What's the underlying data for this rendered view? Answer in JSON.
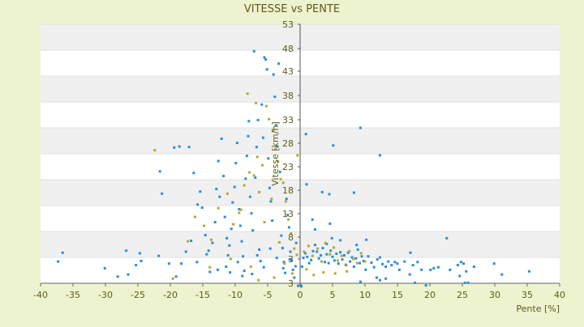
{
  "chart_data": {
    "type": "scatter",
    "title": "VITESSE vs PENTE",
    "xlabel": "Pente [%]",
    "ylabel": "Vitesse [km/h]",
    "xlim": [
      -40,
      40
    ],
    "ylim": [
      3,
      53
    ],
    "x_ticks": [
      "-40",
      "-35",
      "-30",
      "-25",
      "-20",
      "-15",
      "-10",
      "-5",
      "0",
      "5",
      "10",
      "15",
      "20",
      "25",
      "30",
      "35",
      "40"
    ],
    "y_ticks": [
      "3",
      "3",
      "8",
      "13",
      "18",
      "23",
      "28",
      "33",
      "38",
      "43",
      "48",
      "53"
    ],
    "grid": "horizontal alternating bands",
    "legend": "none",
    "colors": {
      "series_blue": "#2a8fd8",
      "series_olive": "#b6a832",
      "band": "#f0f0f0",
      "background": "#eef3cf"
    },
    "series": [
      {
        "color": "#2a8fd8",
        "points": [
          [
            -36.6,
            8.9
          ],
          [
            -37.3,
            7.2
          ],
          [
            -30.1,
            5.9
          ],
          [
            -28.1,
            4.3
          ],
          [
            -26.5,
            4.7
          ],
          [
            -25.3,
            6.5
          ],
          [
            -26.8,
            9.3
          ],
          [
            -24.7,
            8.8
          ],
          [
            -24.5,
            7.3
          ],
          [
            -21.8,
            8.3
          ],
          [
            -21.6,
            24.6
          ],
          [
            -21.3,
            20.3
          ],
          [
            -19.4,
            29.2
          ],
          [
            -18.6,
            29.4
          ],
          [
            -17.1,
            29.3
          ],
          [
            -16.4,
            24.3
          ],
          [
            -20.2,
            6.8
          ],
          [
            -19.1,
            4.3
          ],
          [
            -18.3,
            6.8
          ],
          [
            -17.6,
            9.1
          ],
          [
            -16.8,
            11.2
          ],
          [
            -15.8,
            18.2
          ],
          [
            -15.4,
            20.7
          ],
          [
            -15.1,
            17.6
          ],
          [
            -14.6,
            12.3
          ],
          [
            -14.4,
            8.6
          ],
          [
            -13.9,
            5.2
          ],
          [
            -13.5,
            10.8
          ],
          [
            -13.1,
            14.8
          ],
          [
            -12.9,
            21.2
          ],
          [
            -12.6,
            26.6
          ],
          [
            -12.4,
            19.7
          ],
          [
            -12.1,
            30.9
          ],
          [
            -11.8,
            23.7
          ],
          [
            -11.6,
            15.8
          ],
          [
            -11.3,
            11.7
          ],
          [
            -11.1,
            8.4
          ],
          [
            -10.8,
            5.1
          ],
          [
            -10.6,
            13.5
          ],
          [
            -10.4,
            18.6
          ],
          [
            -10.1,
            21.6
          ],
          [
            -9.9,
            26.2
          ],
          [
            -9.7,
            30.1
          ],
          [
            -9.4,
            17.3
          ],
          [
            -9.2,
            14.1
          ],
          [
            -9.0,
            11.1
          ],
          [
            -8.8,
            8.2
          ],
          [
            -8.6,
            5.4
          ],
          [
            -8.4,
            23.2
          ],
          [
            -8.2,
            27.6
          ],
          [
            -8.0,
            31.4
          ],
          [
            -7.9,
            34.3
          ],
          [
            -7.7,
            19.7
          ],
          [
            -7.5,
            16.5
          ],
          [
            -7.3,
            13.2
          ],
          [
            -7.1,
            47.8
          ],
          [
            -6.9,
            23.4
          ],
          [
            -6.7,
            29.3
          ],
          [
            -6.5,
            34.5
          ],
          [
            -6.3,
            9.5
          ],
          [
            -6.1,
            7.3
          ],
          [
            -5.9,
            37.5
          ],
          [
            -5.7,
            31.1
          ],
          [
            -5.5,
            46.6
          ],
          [
            -5.3,
            46.2
          ],
          [
            -5.1,
            44.3
          ],
          [
            -4.9,
            27.1
          ],
          [
            -4.7,
            21.4
          ],
          [
            -4.5,
            18.8
          ],
          [
            -4.3,
            15.1
          ],
          [
            -4.1,
            43.3
          ],
          [
            -3.9,
            39.0
          ],
          [
            -3.7,
            33.5
          ],
          [
            -3.5,
            29.4
          ],
          [
            -3.3,
            45.4
          ],
          [
            -3.1,
            24.5
          ],
          [
            -2.9,
            12.2
          ],
          [
            -2.7,
            9.8
          ],
          [
            -2.5,
            7.1
          ],
          [
            -2.3,
            5.0
          ],
          [
            -2.1,
            19.3
          ],
          [
            -1.9,
            16.2
          ],
          [
            -1.7,
            13.8
          ],
          [
            -1.5,
            9.1
          ],
          [
            -1.3,
            7.4
          ],
          [
            -1.1,
            5.6
          ],
          [
            -0.9,
            4.1
          ],
          [
            -0.7,
            6.3
          ],
          [
            -9.6,
            7.1
          ],
          [
            -8.9,
            4.4
          ],
          [
            -12.7,
            5.6
          ],
          [
            -15.9,
            7.1
          ],
          [
            -14.1,
            9.3
          ],
          [
            -11.4,
            6.2
          ],
          [
            -10.9,
            10.3
          ],
          [
            -7.4,
            4.8
          ],
          [
            -6.6,
            8.4
          ],
          [
            -5.6,
            6.1
          ],
          [
            -4.6,
            9.7
          ],
          [
            -3.6,
            7.9
          ],
          [
            -2.6,
            5.9
          ],
          [
            -1.6,
            7.6
          ],
          [
            -0.6,
            10.8
          ],
          [
            -0.3,
            2.5
          ],
          [
            0.1,
            2.6
          ],
          [
            0.2,
            2.4
          ],
          [
            0.3,
            6.2
          ],
          [
            0.5,
            7.9
          ],
          [
            0.8,
            8.8
          ],
          [
            1.1,
            8.1
          ],
          [
            1.4,
            6.9
          ],
          [
            1.7,
            7.5
          ],
          [
            2.0,
            9.2
          ],
          [
            2.3,
            10.4
          ],
          [
            2.6,
            9.1
          ],
          [
            2.9,
            7.8
          ],
          [
            3.2,
            8.4
          ],
          [
            3.5,
            9.8
          ],
          [
            3.8,
            7.1
          ],
          [
            4.1,
            8.6
          ],
          [
            4.4,
            6.9
          ],
          [
            4.7,
            9.3
          ],
          [
            5.0,
            8.1
          ],
          [
            5.3,
            7.4
          ],
          [
            5.6,
            8.7
          ],
          [
            5.9,
            6.8
          ],
          [
            6.2,
            9.0
          ],
          [
            6.5,
            7.6
          ],
          [
            6.8,
            8.4
          ],
          [
            7.1,
            6.5
          ],
          [
            7.4,
            8.9
          ],
          [
            7.7,
            7.2
          ],
          [
            8.0,
            8.0
          ],
          [
            8.3,
            6.2
          ],
          [
            8.6,
            7.8
          ],
          [
            8.9,
            9.5
          ],
          [
            9.2,
            6.9
          ],
          [
            9.5,
            8.2
          ],
          [
            9.8,
            7.3
          ],
          [
            10.1,
            5.6
          ],
          [
            10.5,
            8.2
          ],
          [
            11.0,
            7.0
          ],
          [
            11.4,
            6.1
          ],
          [
            11.9,
            7.6
          ],
          [
            12.3,
            8.0
          ],
          [
            12.7,
            6.7
          ],
          [
            13.2,
            6.2
          ],
          [
            13.6,
            7.2
          ],
          [
            14.1,
            6.5
          ],
          [
            14.6,
            7.1
          ],
          [
            15.0,
            6.8
          ],
          [
            15.3,
            5.6
          ],
          [
            16.1,
            7.2
          ],
          [
            17.0,
            8.9
          ],
          [
            17.4,
            6.5
          ],
          [
            18.1,
            7.1
          ],
          [
            18.7,
            5.6
          ],
          [
            19.4,
            2.6
          ],
          [
            20.1,
            5.6
          ],
          [
            20.6,
            5.9
          ],
          [
            21.3,
            6.1
          ],
          [
            22.6,
            11.7
          ],
          [
            23.1,
            5.6
          ],
          [
            24.3,
            6.5
          ],
          [
            24.8,
            7.1
          ],
          [
            25.2,
            6.8
          ],
          [
            25.6,
            5.3
          ],
          [
            26.8,
            6.2
          ],
          [
            29.9,
            6.8
          ],
          [
            31.1,
            4.7
          ],
          [
            35.3,
            5.3
          ],
          [
            25.4,
            3.1
          ],
          [
            25.9,
            3.1
          ],
          [
            24.6,
            4.4
          ],
          [
            17.7,
            3.1
          ],
          [
            16.9,
            4.7
          ],
          [
            11.8,
            4.1
          ],
          [
            12.3,
            3.6
          ],
          [
            13.2,
            3.9
          ],
          [
            9.3,
            3.3
          ],
          [
            0.9,
            31.8
          ],
          [
            1.0,
            22.1
          ],
          [
            1.9,
            15.3
          ],
          [
            2.3,
            13.4
          ],
          [
            3.4,
            20.6
          ],
          [
            4.5,
            20.2
          ],
          [
            5.1,
            29.6
          ],
          [
            4.6,
            14.5
          ],
          [
            8.3,
            20.5
          ],
          [
            9.3,
            33.0
          ],
          [
            12.3,
            27.7
          ],
          [
            10.2,
            11.4
          ],
          [
            4.1,
            10.6
          ],
          [
            4.9,
            11.7
          ],
          [
            8.7,
            10.4
          ],
          [
            6.2,
            11.3
          ]
        ]
      },
      {
        "color": "#b6a832",
        "points": [
          [
            -22.4,
            28.7
          ],
          [
            -19.6,
            3.9
          ],
          [
            -17.3,
            11.1
          ],
          [
            -16.2,
            15.8
          ],
          [
            -14.8,
            14.1
          ],
          [
            -13.7,
            11.4
          ],
          [
            -12.6,
            17.5
          ],
          [
            -11.2,
            20.3
          ],
          [
            -10.3,
            14.4
          ],
          [
            -9.4,
            16.6
          ],
          [
            -8.6,
            21.9
          ],
          [
            -7.8,
            24.4
          ],
          [
            -7.1,
            23.8
          ],
          [
            -6.6,
            27.4
          ],
          [
            -6.3,
            20.6
          ],
          [
            -5.8,
            25.8
          ],
          [
            -5.2,
            37.2
          ],
          [
            -4.8,
            34.7
          ],
          [
            -4.2,
            32.4
          ],
          [
            -3.8,
            28.9
          ],
          [
            -3.4,
            26.5
          ],
          [
            -3.0,
            23.1
          ],
          [
            -2.6,
            22.4
          ],
          [
            -2.2,
            18.8
          ],
          [
            -1.8,
            15.3
          ],
          [
            -1.4,
            12.6
          ],
          [
            -0.9,
            9.7
          ],
          [
            -0.5,
            8.5
          ],
          [
            -0.4,
            27.7
          ],
          [
            -8.1,
            39.6
          ],
          [
            -6.8,
            37.8
          ],
          [
            -4.4,
            19.3
          ],
          [
            -9.1,
            17.2
          ],
          [
            -5.5,
            14.8
          ],
          [
            -3.2,
            10.9
          ],
          [
            -2.4,
            6.8
          ],
          [
            -1.2,
            4.9
          ],
          [
            -6.4,
            3.6
          ],
          [
            -4.0,
            4.1
          ],
          [
            -7.6,
            6.2
          ],
          [
            -10.7,
            7.7
          ],
          [
            -13.9,
            6.1
          ],
          [
            0.6,
            9.1
          ],
          [
            1.3,
            10.2
          ],
          [
            1.9,
            8.3
          ],
          [
            2.7,
            9.7
          ],
          [
            3.3,
            7.2
          ],
          [
            3.9,
            10.8
          ],
          [
            4.6,
            8.6
          ],
          [
            5.2,
            9.9
          ],
          [
            5.8,
            7.4
          ],
          [
            6.4,
            8.3
          ],
          [
            7.0,
            6.6
          ],
          [
            7.6,
            9.2
          ],
          [
            8.2,
            7.7
          ],
          [
            8.8,
            6.9
          ],
          [
            9.4,
            8.8
          ],
          [
            10.0,
            7.2
          ],
          [
            2.1,
            4.6
          ],
          [
            3.6,
            5.1
          ],
          [
            5.4,
            4.9
          ],
          [
            7.2,
            5.3
          ],
          [
            1.0,
            5.7
          ]
        ]
      }
    ]
  }
}
